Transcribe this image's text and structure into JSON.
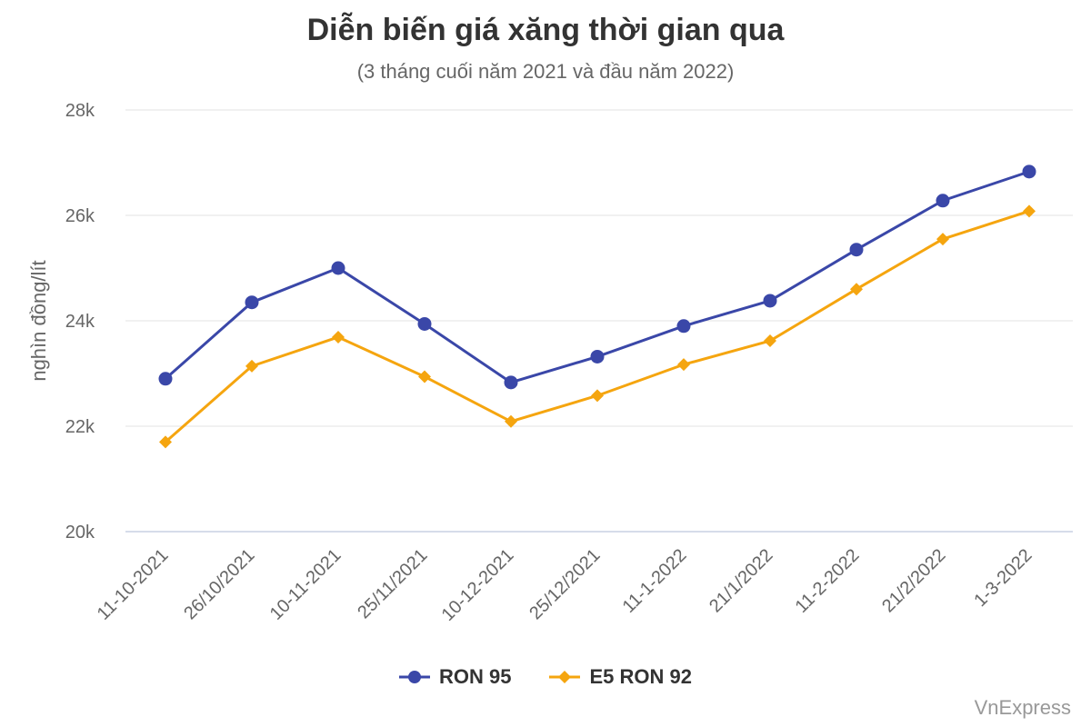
{
  "title": "Diễn biến giá xăng thời gian qua",
  "subtitle": "(3 tháng cuối năm 2021 và đầu năm 2022)",
  "credit": "VnExpress",
  "legend": {
    "ron95": "RON 95",
    "e5ron92": "E5 RON 92"
  },
  "chart_data": {
    "type": "line",
    "title": "Diễn biến giá xăng thời gian qua",
    "subtitle": "(3 tháng cuối năm 2021 và đầu năm 2022)",
    "xlabel": "",
    "ylabel": "nghìn đồng/lít",
    "ylim": [
      20000,
      28000
    ],
    "yticks": [
      20000,
      22000,
      24000,
      26000,
      28000
    ],
    "ytick_labels": [
      "20k",
      "22k",
      "24k",
      "26k",
      "28k"
    ],
    "grid": true,
    "legend_position": "bottom",
    "categories": [
      "11-10-2021",
      "26/10/2021",
      "10-11-2021",
      "25/11/2021",
      "10-12-2021",
      "25/12/2021",
      "11-1-2022",
      "21/1/2022",
      "11-2-2022",
      "21/2/2022",
      "1-3-2022"
    ],
    "series": [
      {
        "name": "RON 95",
        "color": "#3a47a8",
        "marker": "circle",
        "values": [
          22900,
          24350,
          25000,
          23940,
          22830,
          23320,
          23900,
          24380,
          25350,
          26280,
          26830
        ]
      },
      {
        "name": "E5 RON 92",
        "color": "#f5a50f",
        "marker": "diamond",
        "values": [
          21700,
          23140,
          23690,
          22940,
          22090,
          22580,
          23170,
          23620,
          24600,
          25550,
          26080
        ]
      }
    ]
  }
}
